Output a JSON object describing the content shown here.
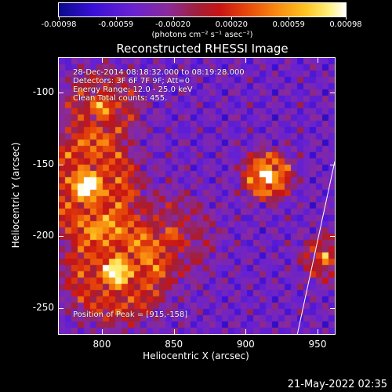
{
  "colorbar": {
    "ticks": [
      "-0.00098",
      "-0.00059",
      "-0.00020",
      "0.00020",
      "0.00059",
      "0.00098"
    ],
    "units": "(photons cm⁻² s⁻¹ asec⁻²)"
  },
  "annotations": {
    "time": "28-Dec-2014 08:18:32.000 to 08:19:28.000",
    "detectors": "Detectors: 3F 6F 7F 9F; Att=0",
    "energy": "Energy Range: 12.0 - 25.0 keV",
    "clean": "Clean     Total counts: 455.",
    "peak": "Position of Peak = [915,-158]"
  },
  "timestamp": "21-May-2022 02:35",
  "chart_data": {
    "type": "heatmap",
    "title": "Reconstructed RHESSI Image",
    "xlabel": "Heliocentric X (arcsec)",
    "ylabel": "Heliocentric Y (arcsec)",
    "xlim": [
      770,
      962
    ],
    "ylim": [
      -268,
      -76
    ],
    "xticks": [
      "800",
      "850",
      "900",
      "950"
    ],
    "yticks": [
      "-100",
      "-150",
      "-200",
      "-250"
    ],
    "xtick_values": [
      800,
      850,
      900,
      950
    ],
    "ytick_values": [
      -100,
      -150,
      -200,
      -250
    ],
    "zlim": [
      -0.00098,
      0.00098
    ],
    "peak_position": [
      915,
      -158
    ],
    "limb_line": [
      [
        936,
        -268
      ],
      [
        962,
        -148
      ]
    ],
    "sources": [
      {
        "x": 915,
        "y": -158,
        "amplitude": 1.0,
        "width": 14
      },
      {
        "x": 790,
        "y": -165,
        "amplitude": 0.8,
        "width": 30
      },
      {
        "x": 810,
        "y": -225,
        "amplitude": 0.75,
        "width": 30
      },
      {
        "x": 800,
        "y": -110,
        "amplitude": 0.55,
        "width": 22
      },
      {
        "x": 850,
        "y": -200,
        "amplitude": 0.35,
        "width": 25
      },
      {
        "x": 955,
        "y": -215,
        "amplitude": 0.55,
        "width": 14
      }
    ]
  }
}
